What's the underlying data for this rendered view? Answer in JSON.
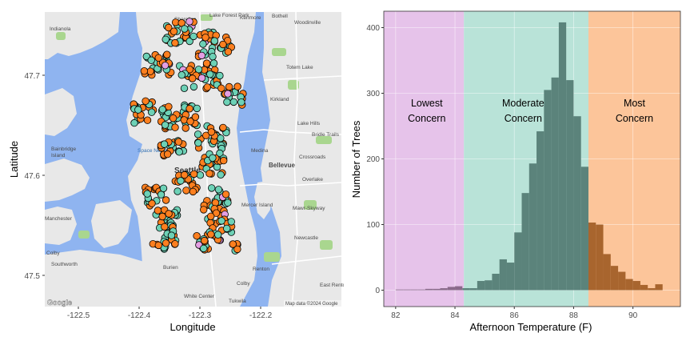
{
  "map_panel": {
    "xlabel": "Longitude",
    "ylabel": "Latitude",
    "x_ticks": [
      "-122.5",
      "-122.4",
      "-122.3",
      "-122.2"
    ],
    "y_ticks": [
      "47.5",
      "47.6",
      "47.7"
    ],
    "attribution": "Map data ©2024 Google",
    "logo": "Google",
    "place_labels": [
      "Shoreline",
      "Lake Forest Park",
      "Kenmore",
      "Bothell",
      "Woodinville",
      "Indianola",
      "Kirkland",
      "Redmond",
      "Medina",
      "Bellevue",
      "Bainbridge Island",
      "Space Needle",
      "Seattle",
      "Mercer Island",
      "Newcastle",
      "Southworth",
      "White Center",
      "Burien",
      "Renton",
      "East Renton Highlands",
      "Factoria",
      "Manchester",
      "Vashon",
      "Colby",
      "Mawr-Skyway",
      "Tukwila",
      "Crossroads",
      "Lake Hills",
      "Bridle Trails",
      "Overlake",
      "Totem Lake"
    ],
    "colors": {
      "water": "#8fb4f0",
      "land": "#e8e8e8",
      "park": "#a9d68f"
    }
  },
  "chart_data": {
    "type": "histogram",
    "xlabel": "Afternoon Temperature (F)",
    "ylabel": "Number of Trees",
    "xlim": [
      81.6,
      91.6
    ],
    "ylim": [
      -25,
      425
    ],
    "x_ticks": [
      82,
      84,
      86,
      88,
      90
    ],
    "y_ticks": [
      0,
      100,
      200,
      300,
      400
    ],
    "bin_width": 0.25,
    "bin_starts": [
      82.0,
      82.25,
      82.5,
      82.75,
      83.0,
      83.25,
      83.5,
      83.75,
      84.0,
      84.25,
      84.5,
      84.75,
      85.0,
      85.25,
      85.5,
      85.75,
      86.0,
      86.25,
      86.5,
      86.75,
      87.0,
      87.25,
      87.5,
      87.75,
      88.0,
      88.25,
      88.5,
      88.75,
      89.0,
      89.25,
      89.5,
      89.75,
      90.0,
      90.25,
      90.5,
      90.75
    ],
    "counts": [
      1,
      1,
      1,
      1,
      2,
      2,
      3,
      5,
      6,
      3,
      3,
      14,
      15,
      25,
      47,
      42,
      88,
      148,
      193,
      242,
      305,
      324,
      408,
      320,
      265,
      188,
      103,
      100,
      55,
      37,
      28,
      17,
      14,
      8,
      3,
      9
    ],
    "zones": [
      {
        "label_line1": "Lowest",
        "label_line2": "Concern",
        "from": 81.6,
        "to": 84.3,
        "color": "#e6c3ea"
      },
      {
        "label_line1": "Moderate",
        "label_line2": "Concern",
        "from": 84.3,
        "to": 88.5,
        "color": "#b9e3d8"
      },
      {
        "label_line1": "Most",
        "label_line2": "Concern",
        "from": 88.5,
        "to": 91.6,
        "color": "#fcc59a"
      }
    ],
    "bar_colors": {
      "lowest": "#8a6a8b",
      "moderate": "#5b837b",
      "most": "#a8652e"
    }
  }
}
